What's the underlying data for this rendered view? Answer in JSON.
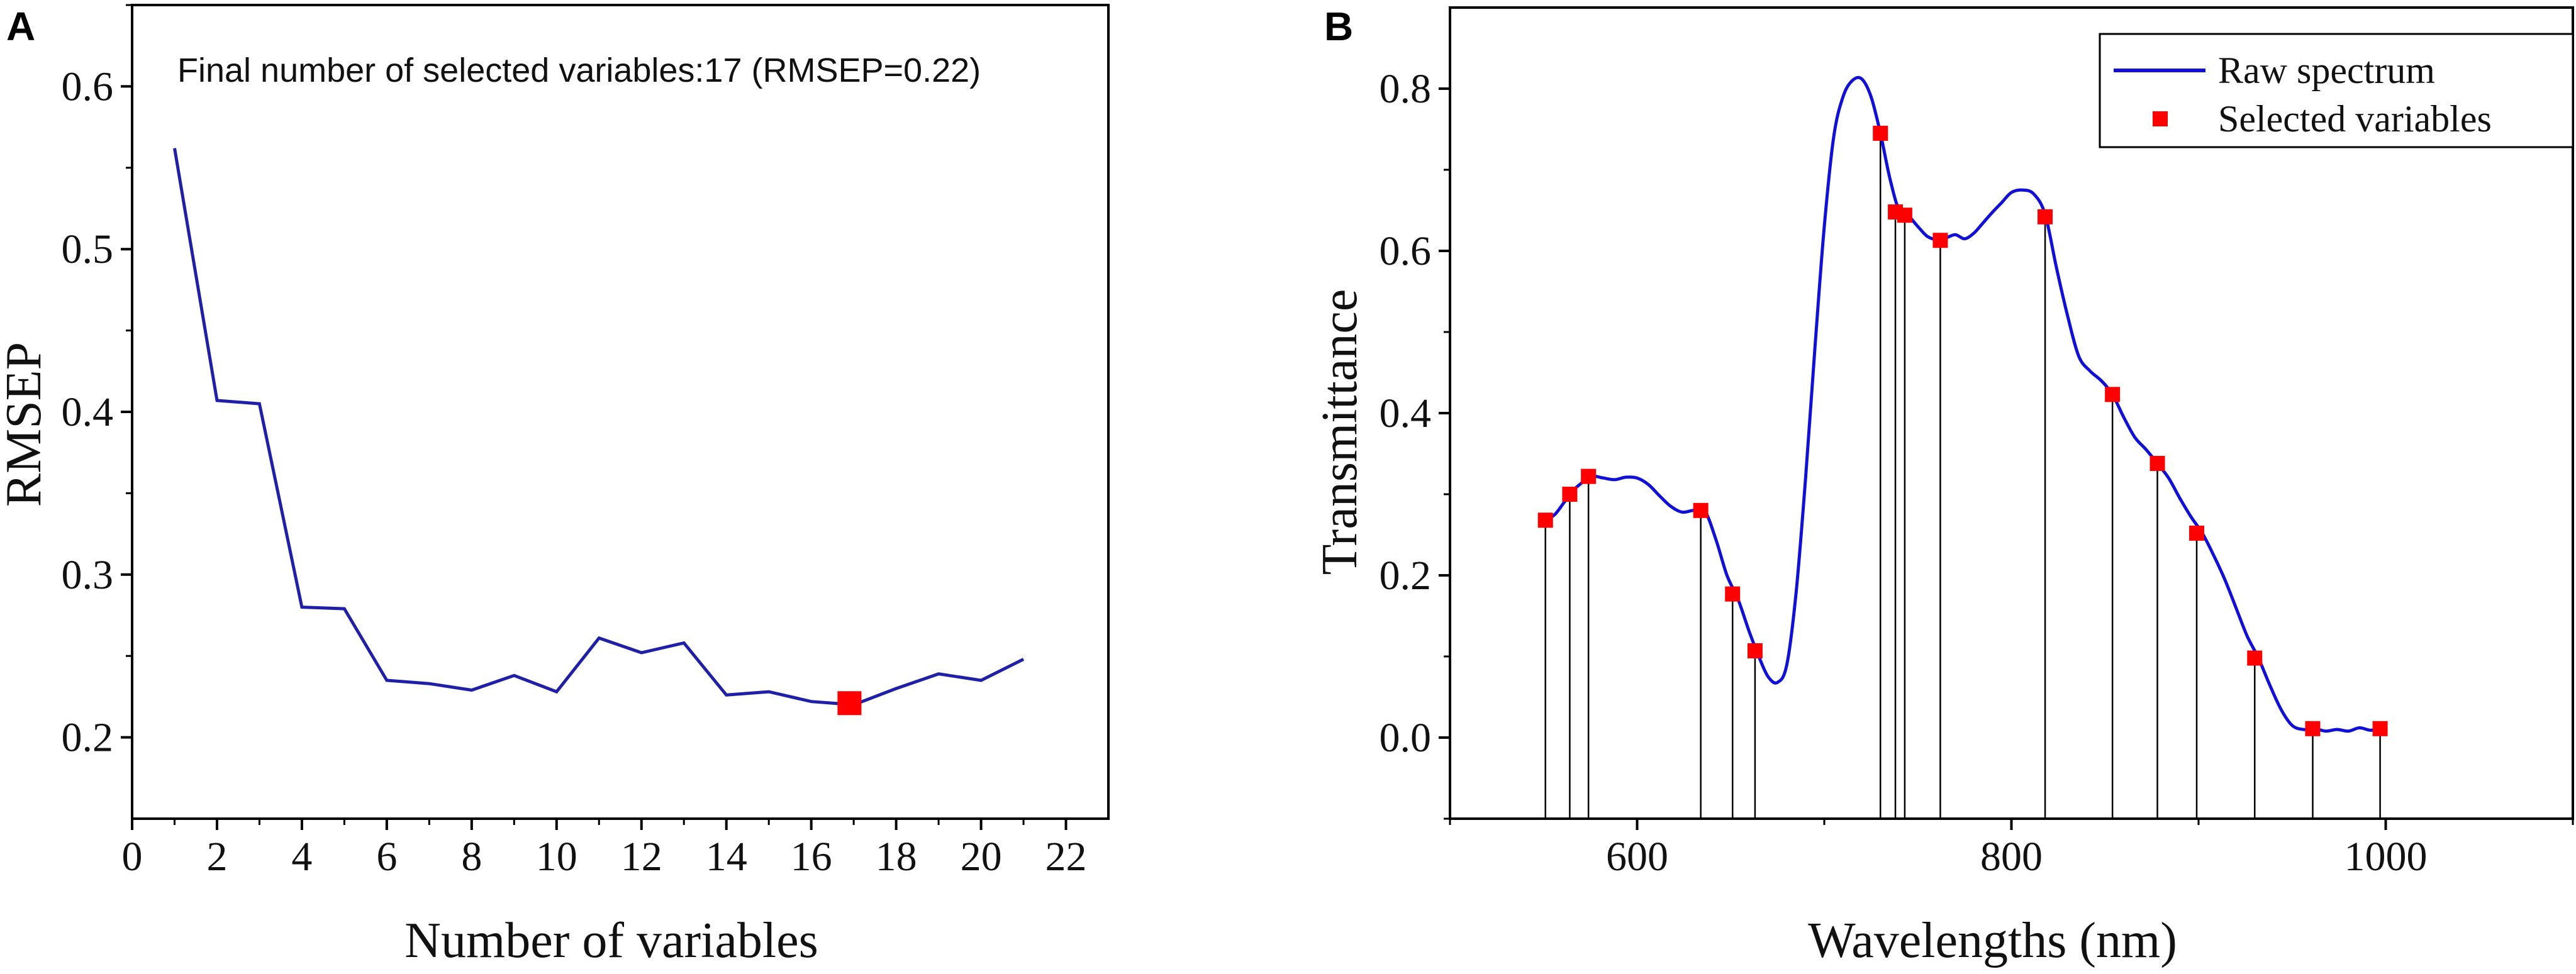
{
  "figure": {
    "panel_a_letter": "A",
    "panel_b_letter": "B"
  },
  "chart_data": [
    {
      "type": "line",
      "panel": "A",
      "title": "",
      "annotation": "Final number of selected variables:17 (RMSEP=0.22)",
      "xlabel": "Number of variables",
      "ylabel": "RMSEP",
      "xlim": [
        0,
        23
      ],
      "ylim": [
        0.15,
        0.65
      ],
      "xticks": [
        0,
        2,
        4,
        6,
        8,
        10,
        12,
        14,
        16,
        18,
        20,
        22
      ],
      "yticks": [
        0.2,
        0.3,
        0.4,
        0.5,
        0.6
      ],
      "xtick_labels": [
        "0",
        "2",
        "4",
        "6",
        "8",
        "10",
        "12",
        "14",
        "16",
        "18",
        "20",
        "22"
      ],
      "ytick_labels": [
        "0.2",
        "0.3",
        "0.4",
        "0.5",
        "0.6"
      ],
      "x": [
        1,
        2,
        3,
        4,
        5,
        6,
        7,
        8,
        9,
        10,
        11,
        12,
        13,
        14,
        15,
        16,
        17,
        18,
        19,
        20,
        21
      ],
      "values": [
        0.562,
        0.407,
        0.405,
        0.28,
        0.279,
        0.235,
        0.233,
        0.229,
        0.238,
        0.228,
        0.261,
        0.252,
        0.258,
        0.226,
        0.228,
        0.222,
        0.22,
        0.23,
        0.239,
        0.235,
        0.248
      ],
      "highlight": {
        "x": 16.9,
        "y": 0.221
      },
      "colors": {
        "line": "#1f1fa8",
        "highlight": "#ff0000"
      }
    },
    {
      "type": "line",
      "panel": "B",
      "title": "",
      "xlabel": "Wavelengths (nm)",
      "ylabel": "Transmittance",
      "xlim": [
        500,
        1100
      ],
      "ylim": [
        -0.1,
        0.9
      ],
      "xticks": [
        600,
        800,
        1000
      ],
      "yticks": [
        0.0,
        0.2,
        0.4,
        0.6,
        0.8
      ],
      "xtick_labels": [
        "600",
        "800",
        "1000"
      ],
      "ytick_labels": [
        "0.0",
        "0.2",
        "0.4",
        "0.6",
        "0.8"
      ],
      "legend": [
        "Raw spectrum",
        "Selected variables"
      ],
      "legend_position": "top-right",
      "series": [
        {
          "name": "Raw spectrum",
          "x": [
            551,
            556,
            561,
            566,
            571,
            576,
            582,
            588,
            594,
            600,
            606,
            612,
            618,
            624,
            630,
            636,
            642,
            648,
            654,
            660,
            665,
            670,
            675,
            680,
            685,
            690,
            695,
            700,
            705,
            710,
            715,
            720,
            725,
            730,
            735,
            740,
            745,
            750,
            755,
            760,
            765,
            770,
            775,
            780,
            785,
            790,
            795,
            800,
            806,
            812,
            818,
            824,
            830,
            836,
            842,
            848,
            854,
            860,
            866,
            872,
            878,
            884,
            890,
            896,
            902,
            908,
            914,
            920,
            926,
            932,
            938,
            944,
            950,
            956,
            962,
            968,
            974,
            980,
            986,
            992,
            997
          ],
          "values": [
            0.268,
            0.275,
            0.29,
            0.305,
            0.315,
            0.322,
            0.32,
            0.318,
            0.321,
            0.32,
            0.312,
            0.298,
            0.285,
            0.278,
            0.28,
            0.28,
            0.245,
            0.2,
            0.17,
            0.13,
            0.1,
            0.075,
            0.068,
            0.09,
            0.18,
            0.32,
            0.48,
            0.63,
            0.74,
            0.79,
            0.81,
            0.812,
            0.79,
            0.745,
            0.69,
            0.65,
            0.643,
            0.63,
            0.618,
            0.614,
            0.616,
            0.62,
            0.615,
            0.622,
            0.635,
            0.648,
            0.66,
            0.672,
            0.675,
            0.67,
            0.645,
            0.58,
            0.52,
            0.47,
            0.452,
            0.44,
            0.423,
            0.395,
            0.37,
            0.355,
            0.338,
            0.32,
            0.295,
            0.272,
            0.252,
            0.225,
            0.195,
            0.16,
            0.125,
            0.098,
            0.065,
            0.035,
            0.015,
            0.01,
            0.011,
            0.008,
            0.01,
            0.008,
            0.012,
            0.009,
            0.012
          ]
        },
        {
          "name": "Selected variables",
          "x": [
            551,
            564,
            574,
            634,
            651,
            663,
            730,
            738,
            743,
            762,
            818,
            854,
            878,
            899,
            930,
            961,
            997
          ],
          "values": [
            0.268,
            0.3,
            0.322,
            0.28,
            0.177,
            0.107,
            0.745,
            0.648,
            0.644,
            0.613,
            0.642,
            0.423,
            0.338,
            0.252,
            0.098,
            0.011,
            0.011
          ]
        }
      ],
      "colors": {
        "line": "#1010d8",
        "marker": "#ff0000",
        "stem": "#000000"
      }
    }
  ]
}
